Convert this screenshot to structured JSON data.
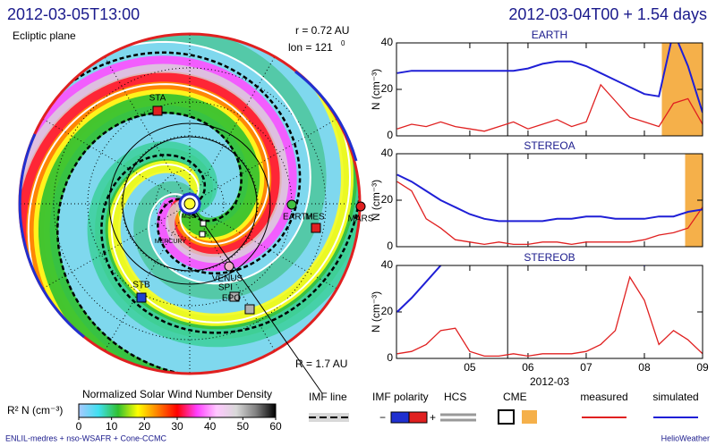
{
  "header": {
    "left_title": "2012-03-05T13:00",
    "right_title": "2012-03-04T00 + 1.54 days"
  },
  "polar": {
    "plane": "Ecliptic plane",
    "r": "r = 0.72 AU",
    "lon": "lon = 121",
    "lon_sup": "0",
    "R": "R = 1.7 AU",
    "objects": [
      {
        "label": "STA",
        "color": "#e02020",
        "shape": "square"
      },
      {
        "label": "EARTH",
        "color": "#40c040",
        "shape": "circle"
      },
      {
        "label": "MES",
        "color": "#e02020",
        "shape": "square"
      },
      {
        "label": "MARS",
        "color": "#e02020",
        "shape": "circle"
      },
      {
        "label": "VENUS",
        "color": "#f0b0c8",
        "shape": "circle"
      },
      {
        "label": "STB",
        "color": "#2040d0",
        "shape": "square"
      },
      {
        "label": "SPI",
        "color": "#b0b0b0",
        "shape": "square"
      },
      {
        "label": "EPO",
        "color": "#b0b0b0",
        "shape": "square"
      },
      {
        "label": "MSG",
        "color": "#ffffff",
        "shape": "square"
      },
      {
        "label": "MERCURY",
        "color": "#ffffff",
        "shape": "square"
      }
    ]
  },
  "chart_data": [
    {
      "type": "line",
      "title": "EARTH",
      "ylabel": "N (cm⁻³)",
      "x": [
        3.75,
        4.0,
        4.25,
        4.5,
        4.75,
        5.0,
        5.25,
        5.5,
        5.75,
        6.0,
        6.25,
        6.5,
        6.75,
        7.0,
        7.25,
        7.5,
        7.75,
        8.0,
        8.25,
        8.5,
        8.75,
        9.0
      ],
      "series": [
        {
          "name": "measured",
          "color": "#e02020",
          "values": [
            3,
            5,
            4,
            6,
            4,
            3,
            2,
            4,
            6,
            3,
            5,
            7,
            4,
            6,
            22,
            15,
            8,
            6,
            4,
            14,
            16,
            5
          ]
        },
        {
          "name": "simulated",
          "color": "#1f1fd6",
          "values": [
            27,
            28,
            28,
            28,
            28,
            28,
            28,
            28,
            28,
            29,
            31,
            32,
            32,
            30,
            27,
            24,
            21,
            18,
            17,
            45,
            30,
            10
          ]
        }
      ],
      "now_x": 5.65,
      "cme_shade": [
        8.3,
        9.0
      ],
      "shade_color": "#f5b04a",
      "xlim": [
        3.74,
        9.0
      ],
      "xticks": [
        5,
        6,
        7,
        8,
        9
      ],
      "ylim": [
        0,
        40
      ],
      "yticks": [
        0,
        20,
        40
      ]
    },
    {
      "type": "line",
      "title": "STEREOA",
      "ylabel": "N (cm⁻³)",
      "x": [
        3.75,
        4.0,
        4.25,
        4.5,
        4.75,
        5.0,
        5.25,
        5.5,
        5.75,
        6.0,
        6.25,
        6.5,
        6.75,
        7.0,
        7.25,
        7.5,
        7.75,
        8.0,
        8.25,
        8.5,
        8.75,
        9.0
      ],
      "series": [
        {
          "name": "measured",
          "color": "#e02020",
          "values": [
            28,
            24,
            12,
            8,
            3,
            2,
            1,
            2,
            1,
            1,
            2,
            2,
            1,
            2,
            2,
            2,
            2,
            3,
            5,
            6,
            8,
            17
          ]
        },
        {
          "name": "simulated",
          "color": "#1f1fd6",
          "values": [
            31,
            28,
            24,
            20,
            17,
            14,
            12,
            11,
            11,
            11,
            11,
            12,
            12,
            13,
            13,
            12,
            12,
            12,
            13,
            13,
            15,
            16
          ]
        }
      ],
      "now_x": 5.65,
      "cme_shade": [
        8.7,
        9.0
      ],
      "shade_color": "#f5b04a",
      "xlim": [
        3.74,
        9.0
      ],
      "xticks": [
        5,
        6,
        7,
        8,
        9
      ],
      "ylim": [
        0,
        40
      ],
      "yticks": [
        0,
        20,
        40
      ]
    },
    {
      "type": "line",
      "title": "STEREOB",
      "ylabel": "N (cm⁻³)",
      "xlabel": "2012-03",
      "x": [
        3.75,
        4.0,
        4.25,
        4.5,
        4.75,
        5.0,
        5.25,
        5.5,
        5.75,
        6.0,
        6.25,
        6.5,
        6.75,
        7.0,
        7.25,
        7.5,
        7.75,
        8.0,
        8.25,
        8.5,
        8.75,
        9.0
      ],
      "series": [
        {
          "name": "measured",
          "color": "#e02020",
          "values": [
            2,
            3,
            6,
            12,
            13,
            3,
            1,
            1,
            2,
            1,
            2,
            2,
            2,
            3,
            6,
            12,
            35,
            25,
            6,
            12,
            8,
            2
          ]
        },
        {
          "name": "simulated",
          "color": "#1f1fd6",
          "values": [
            20,
            26,
            33,
            40,
            46,
            50,
            50,
            50,
            50,
            50,
            50,
            50,
            50,
            50,
            50,
            50,
            44,
            40,
            44,
            50,
            50,
            50
          ]
        }
      ],
      "now_x": 5.65,
      "xlim": [
        3.74,
        9.0
      ],
      "xticks": [
        {
          "value": 5,
          "label": "05"
        },
        {
          "value": 6,
          "label": "06"
        },
        {
          "value": 7,
          "label": "07"
        },
        {
          "value": 8,
          "label": "08"
        },
        {
          "value": 9,
          "label": "09"
        }
      ],
      "ylim": [
        0,
        40
      ],
      "yticks": [
        0,
        20,
        40
      ]
    },
    {
      "type": "colorbar",
      "title": "Normalized Solar Wind Number Density",
      "label": "R² N (cm⁻³)",
      "colors": [
        "#a8c8ff",
        "#40e0f0",
        "#30c030",
        "#ffff00",
        "#ff8000",
        "#ff0000",
        "#ff40ff",
        "#ffc8ff",
        "#d8d8d8",
        "#808080",
        "#000000"
      ],
      "xlim": [
        0,
        60
      ],
      "xticks": [
        0,
        10,
        20,
        30,
        40,
        50,
        60
      ]
    }
  ],
  "legend": {
    "imf_line": "IMF line",
    "imf_polarity": "IMF polarity",
    "minus": "−",
    "plus": "+",
    "hcs": "HCS",
    "cme": "CME"
  },
  "footer": {
    "left": "ENLIL-medres + nso-WSAFR + Cone-CCMC",
    "right": "HelioWeather"
  }
}
